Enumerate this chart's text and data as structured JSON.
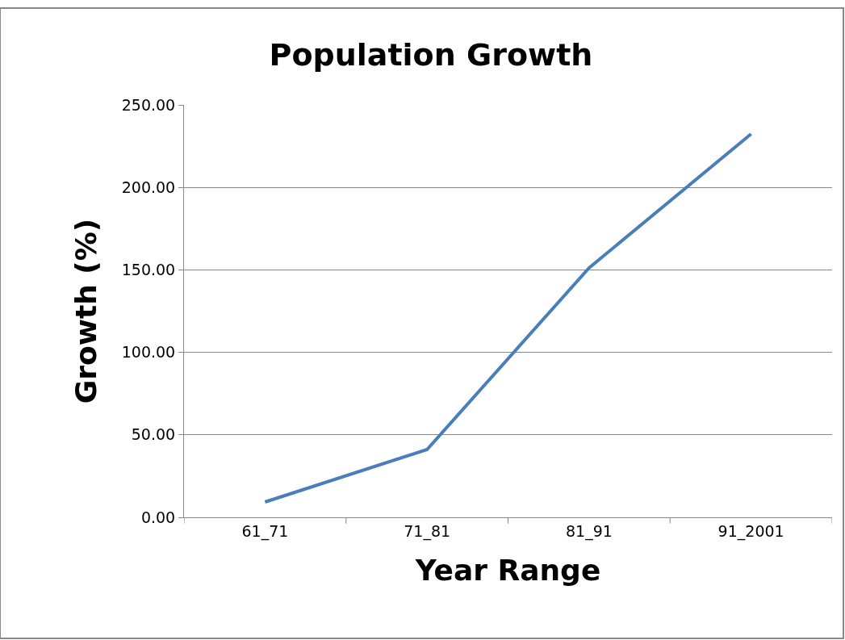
{
  "chart_data": {
    "type": "line",
    "title": "Population Growth",
    "xlabel": "Year Range",
    "ylabel": "Growth (%)",
    "categories": [
      "61_71",
      "71_81",
      "81_91",
      "91_2001"
    ],
    "series": [
      {
        "color": "#4a7ebb",
        "values": [
          9.3,
          41.1,
          151.2,
          232.4
        ]
      }
    ],
    "ylim": [
      0,
      250
    ],
    "yticks": [
      {
        "value": 0,
        "label": "0.00"
      },
      {
        "value": 50,
        "label": "50.00"
      },
      {
        "value": 100,
        "label": "100.00"
      },
      {
        "value": 150,
        "label": "150.00"
      },
      {
        "value": 200,
        "label": "200.00"
      },
      {
        "value": 250,
        "label": "250.00"
      }
    ],
    "grid": "y",
    "legend": false,
    "marker": "none",
    "line_style": "solid"
  }
}
